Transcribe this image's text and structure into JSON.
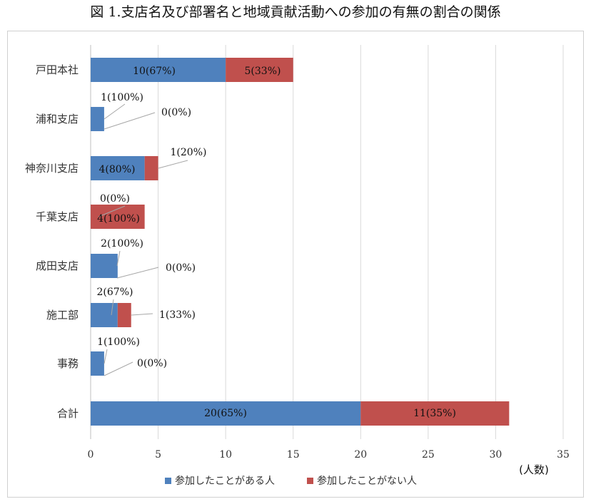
{
  "chart_data": {
    "type": "bar",
    "orientation": "horizontal",
    "stacked": true,
    "title": "図 1.支店名及び部署名と地域貢献活動への参加の有無の割合の関係",
    "xlabel": "(人数)",
    "ylabel": "",
    "xlim": [
      0,
      35
    ],
    "xticks": [
      0,
      5,
      10,
      15,
      20,
      25,
      30,
      35
    ],
    "grid": true,
    "legend_position": "bottom",
    "categories": [
      "戸田本社",
      "浦和支店",
      "神奈川支店",
      "千葉支店",
      "成田支店",
      "施工部",
      "事務",
      "合計"
    ],
    "series": [
      {
        "name": "参加したことがある人",
        "color": "#4f81bd",
        "values": [
          10,
          1,
          4,
          0,
          2,
          2,
          1,
          20
        ],
        "labels": [
          "10(67%)",
          "1(100%)",
          "4(80%)",
          "0(0%)",
          "2(100%)",
          "2(67%)",
          "1(100%)",
          "20(65%)"
        ]
      },
      {
        "name": "参加したことがない人",
        "color": "#c0504d",
        "values": [
          5,
          0,
          1,
          4,
          0,
          1,
          0,
          11
        ],
        "labels": [
          "5(33%)",
          "0(0%)",
          "1(20%)",
          "4(100%)",
          "0(0%)",
          "1(33%)",
          "0(0%)",
          "11(35%)"
        ]
      }
    ]
  }
}
